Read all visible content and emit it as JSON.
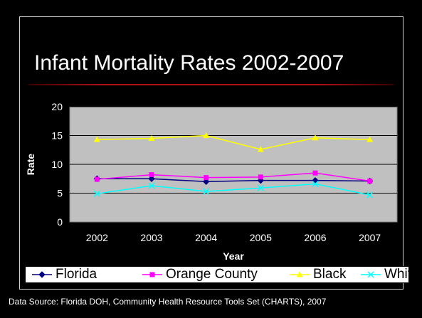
{
  "slide": {
    "title": "Infant Mortality Rates 2002-2007",
    "source": "Data Source: Florida DOH, Community Health Resource Tools Set (CHARTS), 2007"
  },
  "colors": {
    "background": "#000000",
    "plot_area": "#c0c0c0",
    "gridline": "#000000",
    "rule": "#b01010",
    "text": "#ffffff"
  },
  "chart_data": {
    "type": "line",
    "title": "",
    "xlabel": "Year",
    "ylabel": "Rate",
    "categories": [
      "2002",
      "2003",
      "2004",
      "2005",
      "2006",
      "2007"
    ],
    "ylim": [
      0,
      20
    ],
    "yticks": [
      "0",
      "5",
      "10",
      "15",
      "20"
    ],
    "grid": true,
    "legend_position": "bottom",
    "series": [
      {
        "name": "Florida",
        "color": "#000080",
        "marker": "diamond",
        "values": [
          7.5,
          7.5,
          7.0,
          7.2,
          7.2,
          7.1
        ]
      },
      {
        "name": "Orange County",
        "color": "#ff00ff",
        "marker": "square",
        "values": [
          7.4,
          8.2,
          7.7,
          7.8,
          8.5,
          7.1
        ]
      },
      {
        "name": "Black",
        "color": "#ffff00",
        "marker": "triangle",
        "values": [
          14.3,
          14.5,
          15.0,
          12.6,
          14.6,
          14.3
        ]
      },
      {
        "name": "White",
        "color": "#00ffff",
        "marker": "x",
        "values": [
          4.9,
          6.3,
          5.3,
          5.9,
          6.6,
          4.7
        ]
      }
    ]
  }
}
